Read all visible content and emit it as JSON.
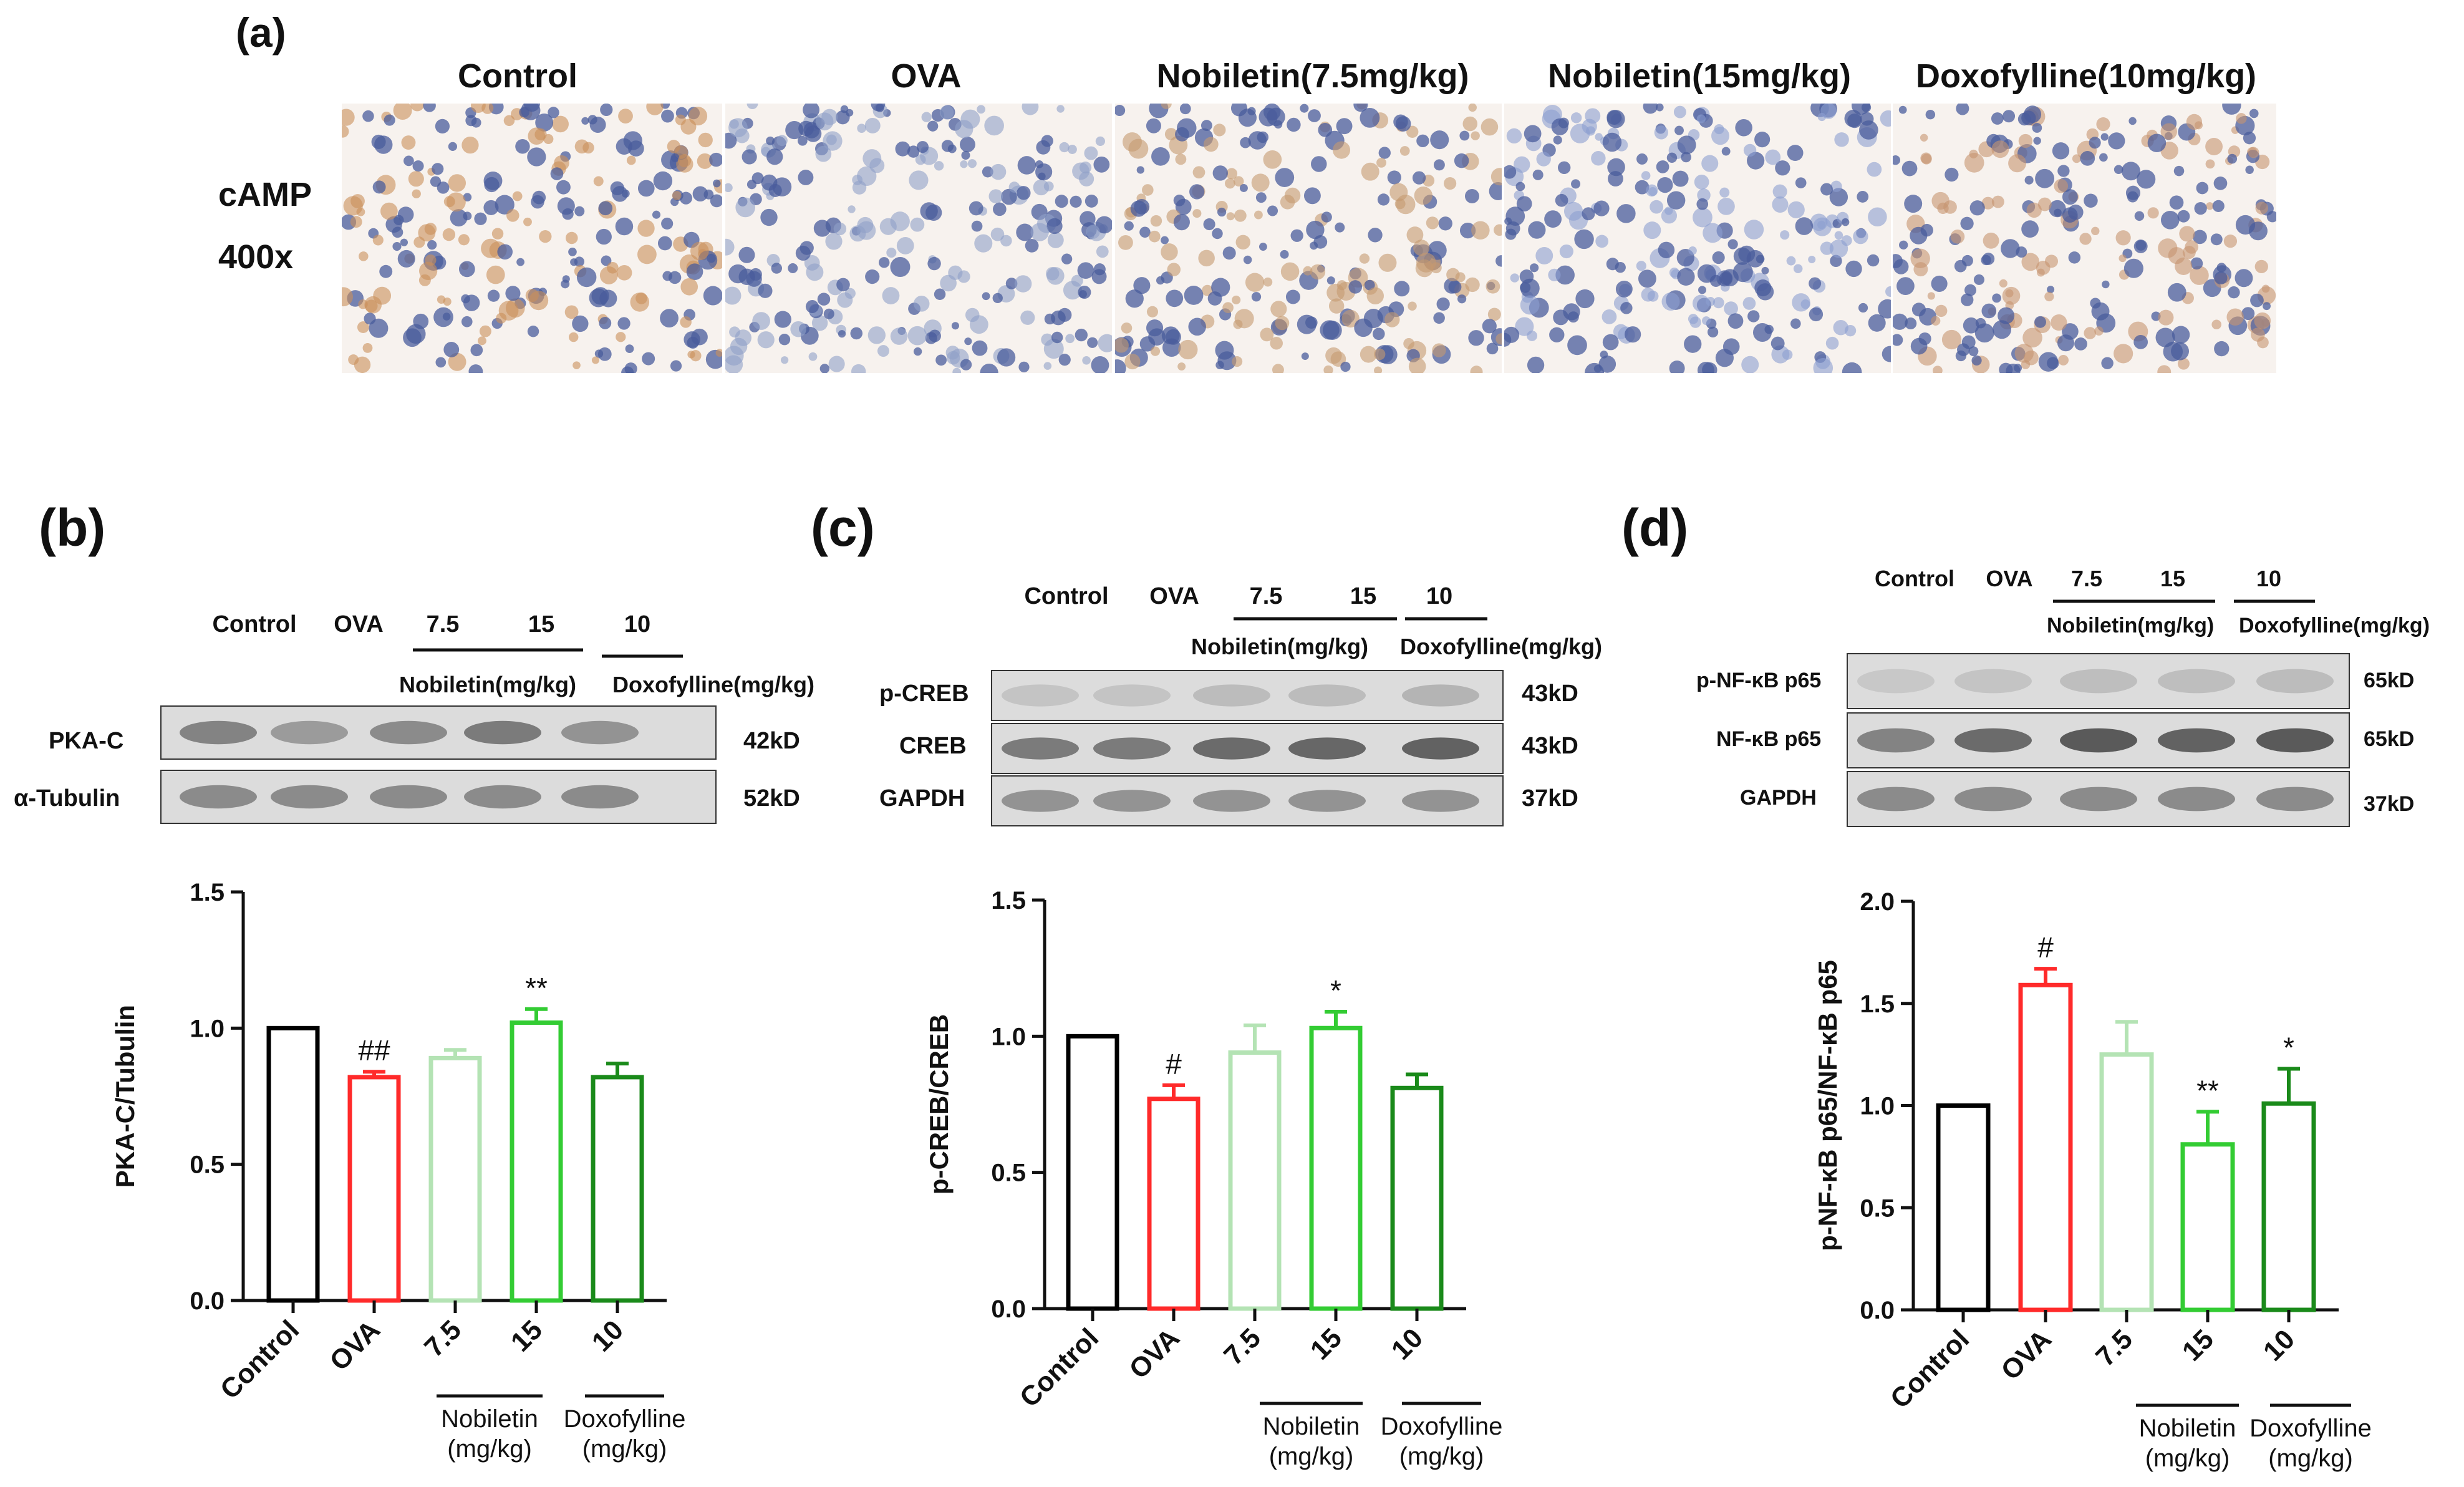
{
  "panel_a": {
    "letter": "(a)",
    "columns": [
      "Control",
      "OVA",
      "Nobiletin(7.5mg/kg)",
      "Nobiletin(15mg/kg)",
      "Doxofylline(10mg/kg)"
    ],
    "row_label": "cAMP",
    "row_magnification": "400x",
    "tissue_colors": [
      "#c9905a",
      "#8fa0c8",
      "#c49a70",
      "#8c9fd0",
      "#c79470"
    ]
  },
  "panel_b": {
    "letter": "(b)",
    "blot_header": [
      "Control",
      "OVA",
      "7.5",
      "15",
      "10"
    ],
    "blot_groups": {
      "nobiletin": "Nobiletin(mg/kg)",
      "doxofylline": "Doxofylline(mg/kg)"
    },
    "bands": [
      {
        "name": "PKA-C",
        "size": "42kD"
      },
      {
        "name": "α-Tubulin",
        "size": "52kD"
      }
    ]
  },
  "panel_c": {
    "letter": "(c)",
    "blot_header": [
      "Control",
      "OVA",
      "7.5",
      "15",
      "10"
    ],
    "blot_groups": {
      "nobiletin": "Nobiletin(mg/kg)",
      "doxofylline": "Doxofylline(mg/kg)"
    },
    "bands": [
      {
        "name": "p-CREB",
        "size": "43kD"
      },
      {
        "name": "CREB",
        "size": "43kD"
      },
      {
        "name": "GAPDH",
        "size": "37kD"
      }
    ]
  },
  "panel_d": {
    "letter": "(d)",
    "blot_header": [
      "Control",
      "OVA",
      "7.5",
      "15",
      "10"
    ],
    "blot_groups": {
      "nobiletin": "Nobiletin(mg/kg)",
      "doxofylline": "Doxofylline(mg/kg)"
    },
    "bands": [
      {
        "name": "p-NF-κB p65",
        "size": "65kD"
      },
      {
        "name": "NF-κB p65",
        "size": "65kD"
      },
      {
        "name": "GAPDH",
        "size": "37kD"
      }
    ]
  },
  "chart_data": [
    {
      "type": "bar",
      "panel": "b",
      "categories": [
        "Control",
        "OVA",
        "7.5",
        "15",
        "10"
      ],
      "values": [
        1.0,
        0.82,
        0.89,
        1.02,
        0.82
      ],
      "errors": [
        0,
        0.02,
        0.03,
        0.05,
        0.05
      ],
      "significance": [
        "",
        "##",
        "",
        "**",
        ""
      ],
      "colors": [
        "#000000",
        "#ff2a2a",
        "#b4e3b4",
        "#33cc33",
        "#1a8a1a"
      ],
      "ylabel": "PKA-C/Tubulin",
      "ylim": [
        0,
        1.5
      ],
      "yticks": [
        "0.0",
        "0.5",
        "1.0",
        "1.5"
      ],
      "groups": [
        {
          "label_1": "Nobiletin",
          "label_2": "(mg/kg)"
        },
        {
          "label_1": "Doxofylline",
          "label_2": "(mg/kg)"
        }
      ]
    },
    {
      "type": "bar",
      "panel": "c",
      "categories": [
        "Control",
        "OVA",
        "7.5",
        "15",
        "10"
      ],
      "values": [
        1.0,
        0.77,
        0.94,
        1.03,
        0.81
      ],
      "errors": [
        0,
        0.05,
        0.1,
        0.06,
        0.05
      ],
      "significance": [
        "",
        "#",
        "",
        "*",
        ""
      ],
      "colors": [
        "#000000",
        "#ff2a2a",
        "#b4e3b4",
        "#33cc33",
        "#1a8a1a"
      ],
      "ylabel": "p-CREB/CREB",
      "ylim": [
        0,
        1.5
      ],
      "yticks": [
        "0.0",
        "0.5",
        "1.0",
        "1.5"
      ],
      "groups": [
        {
          "label_1": "Nobiletin",
          "label_2": "(mg/kg)"
        },
        {
          "label_1": "Doxofylline",
          "label_2": "(mg/kg)"
        }
      ]
    },
    {
      "type": "bar",
      "panel": "d",
      "categories": [
        "Control",
        "OVA",
        "7.5",
        "15",
        "10"
      ],
      "values": [
        1.0,
        1.59,
        1.25,
        0.81,
        1.01
      ],
      "errors": [
        0,
        0.08,
        0.16,
        0.16,
        0.17
      ],
      "significance": [
        "",
        "#",
        "",
        "**",
        "*"
      ],
      "colors": [
        "#000000",
        "#ff2a2a",
        "#b4e3b4",
        "#33cc33",
        "#1a8a1a"
      ],
      "ylabel": "p-NF-κB p65/NF-κB p65",
      "ylim": [
        0,
        2.0
      ],
      "yticks": [
        "0.0",
        "0.5",
        "1.0",
        "1.5",
        "2.0"
      ],
      "groups": [
        {
          "label_1": "Nobiletin",
          "label_2": "(mg/kg)"
        },
        {
          "label_1": "Doxofylline",
          "label_2": "(mg/kg)"
        }
      ]
    }
  ]
}
